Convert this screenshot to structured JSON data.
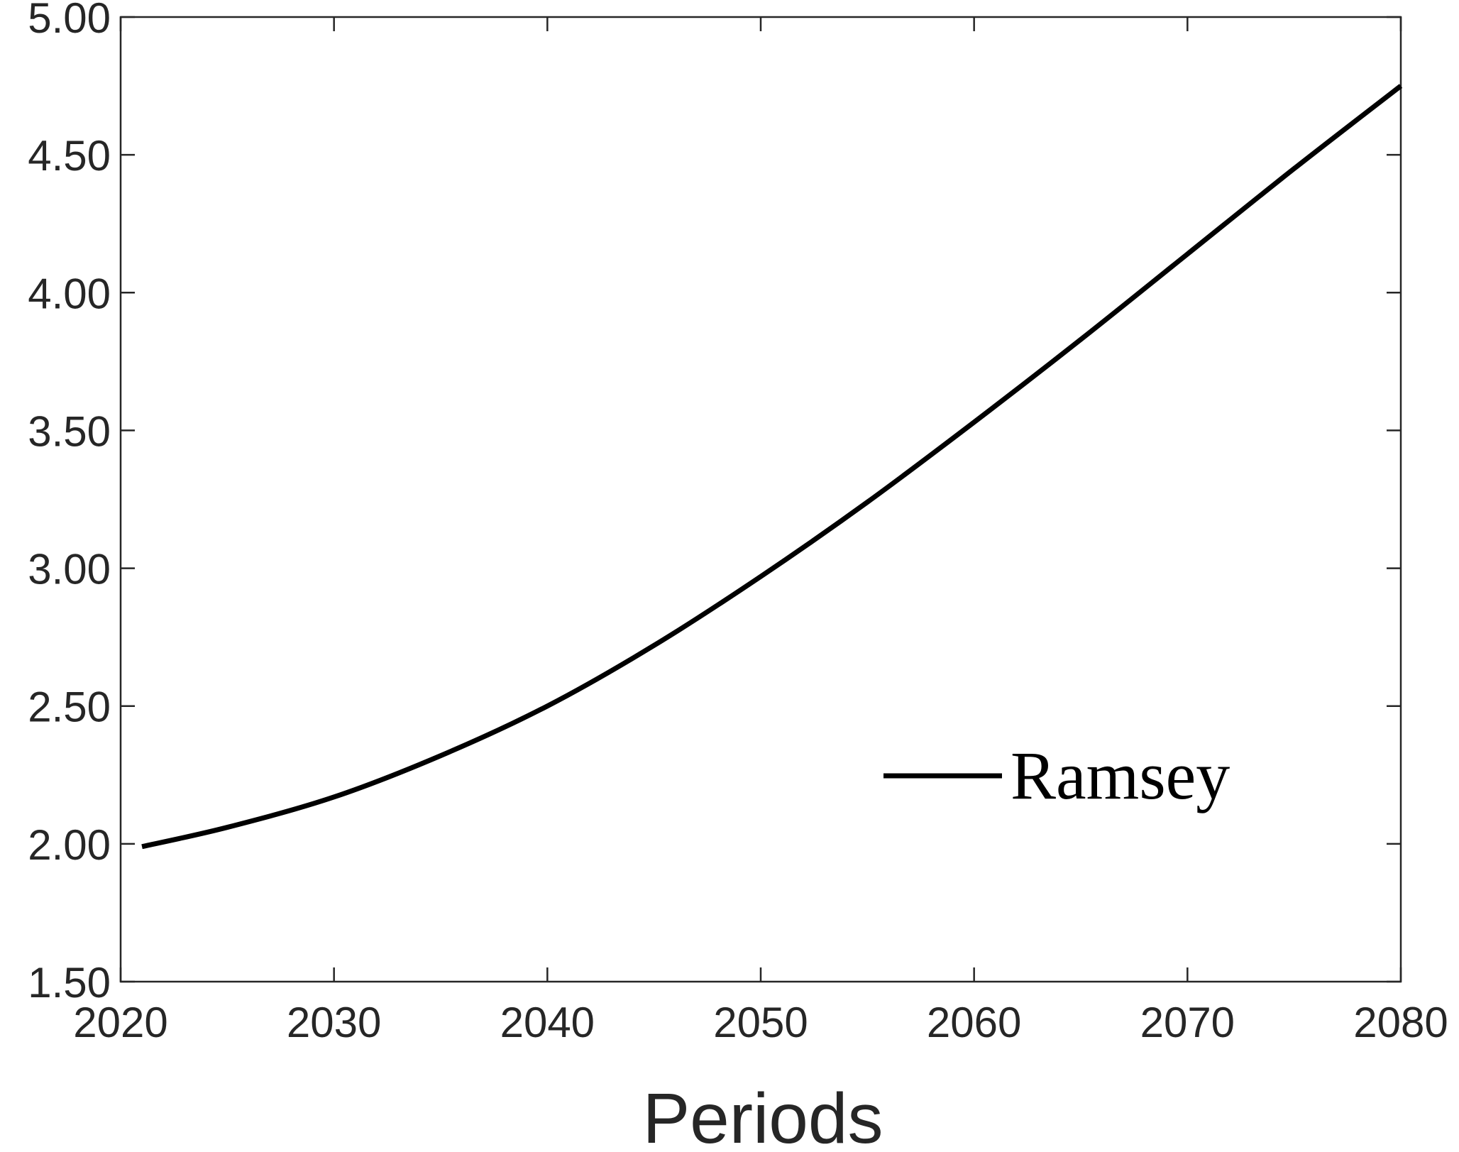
{
  "chart_data": {
    "type": "line",
    "title": "",
    "xlabel": "Periods",
    "ylabel": "",
    "xlim": [
      2020,
      2080
    ],
    "ylim": [
      1.5,
      5.0
    ],
    "x_ticks": [
      2020,
      2030,
      2040,
      2050,
      2060,
      2070,
      2080
    ],
    "x_tick_labels": [
      "2020",
      "2030",
      "2040",
      "2050",
      "2060",
      "2070",
      "2080"
    ],
    "y_ticks": [
      1.5,
      2.0,
      2.5,
      3.0,
      3.5,
      4.0,
      4.5,
      5.0
    ],
    "y_tick_labels": [
      "1.50",
      "2.00",
      "2.50",
      "3.00",
      "3.50",
      "4.00",
      "4.50",
      "5.00"
    ],
    "grid": false,
    "legend_position": "lower-right",
    "series": [
      {
        "name": "Ramsey",
        "color": "#000000",
        "x": [
          2021,
          2025,
          2030,
          2035,
          2040,
          2045,
          2050,
          2055,
          2060,
          2065,
          2070,
          2075,
          2080
        ],
        "y": [
          1.99,
          2.06,
          2.17,
          2.32,
          2.5,
          2.72,
          2.97,
          3.24,
          3.53,
          3.83,
          4.14,
          4.45,
          4.75
        ]
      }
    ]
  }
}
